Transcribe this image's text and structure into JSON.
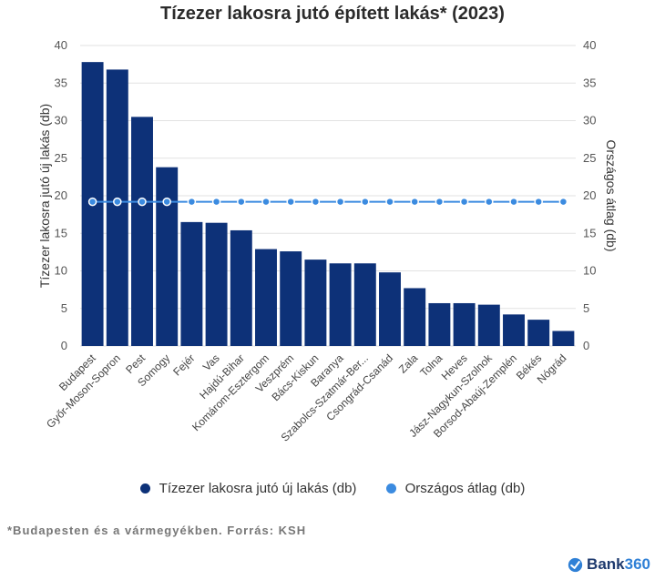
{
  "chart_data": {
    "type": "bar",
    "title": "Tízezer lakosra jutó épített lakás* (2023)",
    "categories": [
      "Budapest",
      "Győr-Moson-Sopron",
      "Pest",
      "Somogy",
      "Fejér",
      "Vas",
      "Hajdú-Bihar",
      "Komárom-Esztergom",
      "Veszprém",
      "Bács-Kiskun",
      "Baranya",
      "Szabolcs-Szatmár-Ber...",
      "Csongrád-Csanád",
      "Zala",
      "Tolna",
      "Heves",
      "Jász-Nagykun-Szolnok",
      "Borsod-Abaúj-Zemplén",
      "Békés",
      "Nógrád"
    ],
    "series": [
      {
        "name": "Tízezer lakosra jutó új lakás (db)",
        "type": "bar",
        "axis": "left",
        "color": "#0d3178",
        "values": [
          37.8,
          36.8,
          30.5,
          23.8,
          16.5,
          16.4,
          15.4,
          12.9,
          12.6,
          11.5,
          11.0,
          11.0,
          9.8,
          7.7,
          5.7,
          5.7,
          5.5,
          4.2,
          3.5,
          2.0
        ]
      },
      {
        "name": "Országos átlag (db)",
        "type": "line",
        "axis": "right",
        "color": "#3b8be0",
        "values": [
          19.2,
          19.2,
          19.2,
          19.2,
          19.2,
          19.2,
          19.2,
          19.2,
          19.2,
          19.2,
          19.2,
          19.2,
          19.2,
          19.2,
          19.2,
          19.2,
          19.2,
          19.2,
          19.2,
          19.2
        ]
      }
    ],
    "ylabel": "Tízezer lakosra jutó új lakás (db)",
    "y2label": "Országos átlag (db)",
    "ylim": [
      0,
      40
    ],
    "y2lim": [
      0,
      40
    ],
    "yticks": [
      0,
      5,
      10,
      15,
      20,
      25,
      30,
      35,
      40
    ],
    "grid": true,
    "legend": "bottom"
  },
  "legend": {
    "items": [
      {
        "label": "Tízezer lakosra jutó új lakás (db)",
        "color": "#0d3178"
      },
      {
        "label": "Országos átlag (db)",
        "color": "#3b8be0"
      }
    ]
  },
  "footnote": "*Budapesten és a vármegyékben. Forrás: KSH",
  "brand": {
    "name": "Bank",
    "accent": "360"
  }
}
